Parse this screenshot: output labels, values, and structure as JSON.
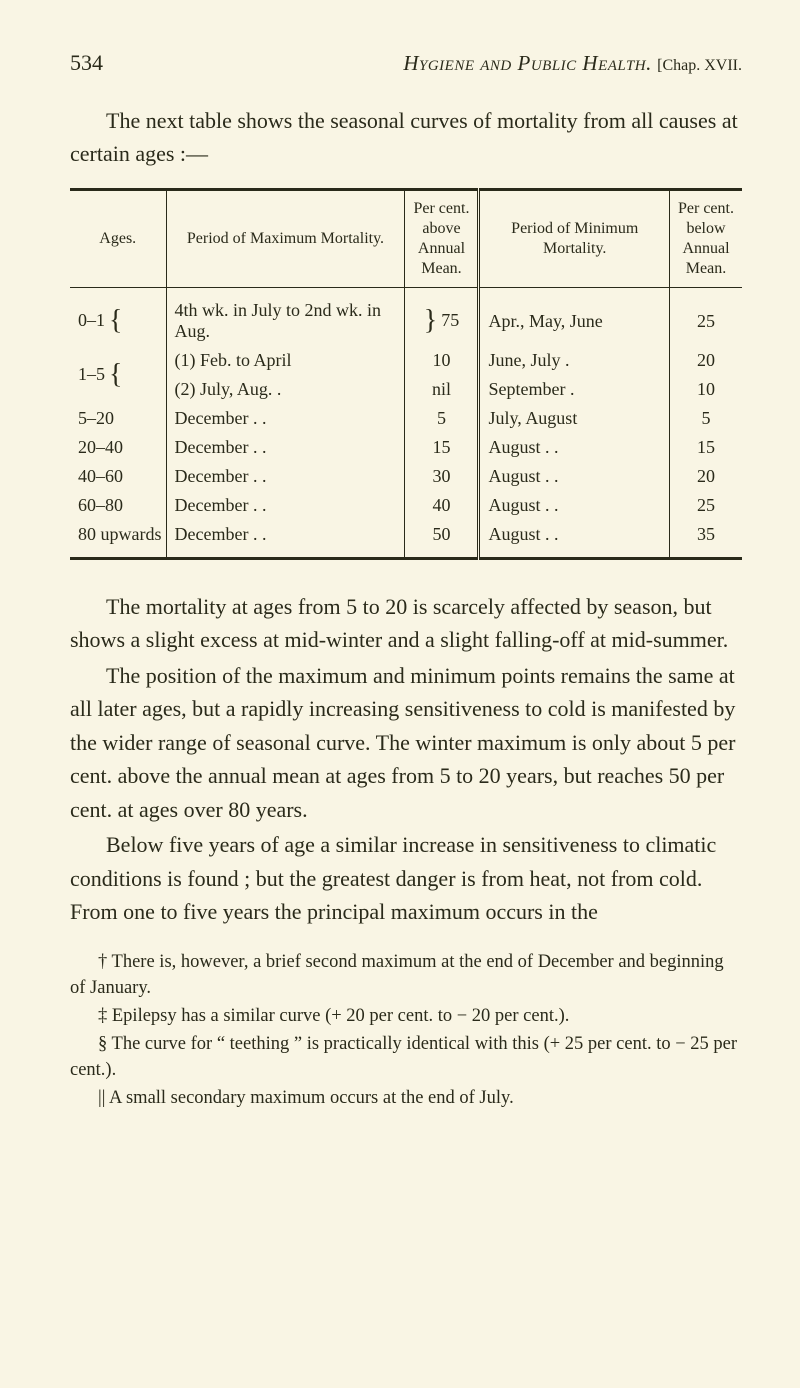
{
  "header": {
    "page_number": "534",
    "running_title_italic": "Hygiene and Public Health.",
    "chap_ref": "[Chap. XVII."
  },
  "intro": "The next table shows the seasonal curves of mortality from all causes at certain ages :—",
  "table": {
    "headers": {
      "ages": "Ages.",
      "period_max": "Period of Maximum Mortality.",
      "pct_max": "Per cent. above Annual Mean.",
      "period_min": "Period of Minimum Mortality.",
      "pct_min": "Per cent. below Annual Mean."
    },
    "rows": [
      {
        "age": "0–1",
        "brace": "{",
        "max": "4th wk. in July to 2nd wk. in Aug.",
        "pct_max_brace": "}",
        "pct_max": "75",
        "min": "Apr., May, June",
        "pct_min": "25"
      },
      {
        "age": "1–5",
        "brace": "{",
        "max_a": "(1) Feb. to April",
        "pct_max_a": "10",
        "min_a": "June, July    .",
        "pct_min_a": "20",
        "max_b": "(2) July, Aug.  .",
        "pct_max_b": "nil",
        "min_b": "September    .",
        "pct_min_b": "10"
      },
      {
        "age": "5–20",
        "max": "December .    .",
        "pct_max": "5",
        "min": "July, August",
        "pct_min": "5"
      },
      {
        "age": "20–40",
        "max": "December .    .",
        "pct_max": "15",
        "min": "August    .    .",
        "pct_min": "15"
      },
      {
        "age": "40–60",
        "max": "December .    .",
        "pct_max": "30",
        "min": "August    .    .",
        "pct_min": "20"
      },
      {
        "age": "60–80",
        "max": "December .    .",
        "pct_max": "40",
        "min": "August    .    .",
        "pct_min": "25"
      },
      {
        "age": "80 upwards",
        "max": "December .    .",
        "pct_max": "50",
        "min": "August    .    .",
        "pct_min": "35"
      }
    ]
  },
  "paragraphs": {
    "p1": "The mortality at ages from 5 to 20 is scarcely affected by season, but shows a slight excess at mid-winter and a slight falling-off at mid-summer.",
    "p2": "The position of the maximum and minimum points remains the same at all later ages, but a rapidly increasing sensitiveness to cold is manifested by the wider range of seasonal curve. The winter maximum is only about 5 per cent. above the annual mean at ages from 5 to 20 years, but reaches 50 per cent. at ages over 80 years.",
    "p3": "Below five years of age a similar increase in sensitiveness to climatic conditions is found ; but the greatest danger is from heat, not from cold. From one to five years the principal maximum occurs in the"
  },
  "footnotes": {
    "f1": "† There is, however, a brief second maximum at the end of December and beginning of January.",
    "f2": "‡ Epilepsy has a similar curve (+ 20 per cent. to − 20 per cent.).",
    "f3": "§ The curve for “ teething ” is practically identical with this (+ 25 per cent. to − 25 per cent.).",
    "f4": "|| A small secondary maximum occurs at the end of July."
  },
  "colors": {
    "background": "#f9f5e4",
    "text": "#2a2a1a",
    "rule": "#2a2a1a"
  }
}
